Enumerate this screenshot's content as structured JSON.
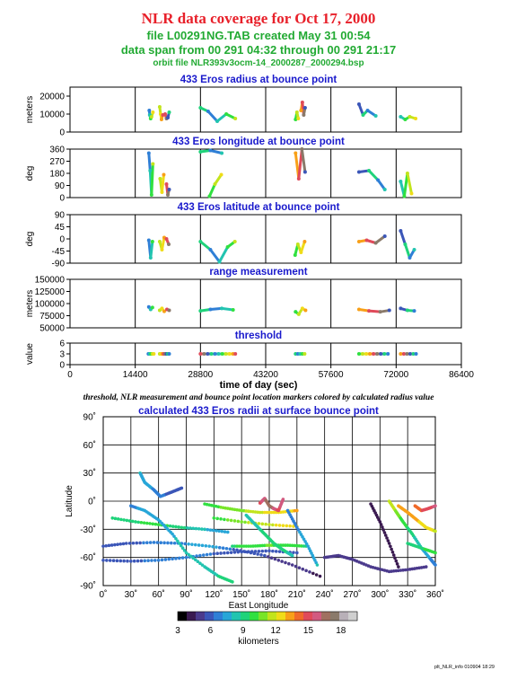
{
  "header": {
    "title": "NLR data coverage for Oct 17, 2000",
    "file_line": "file L00291NG.TAB created May 31 00:54",
    "span_line": "data span from 00 291 04:32 through 00 291 21:17",
    "orbit_line": "orbit file NLR393v3ocm-14_2000287_2000294.bsp"
  },
  "caption": "threshold, NLR measurement and bounce point location markers colored by calculated radius value",
  "footer": "plt_NLR_info 010904 18:29",
  "colors": {
    "header_title": "#e8202a",
    "header_info": "#22aa33",
    "panel_title": "#1a1acc"
  },
  "chart_data": [
    {
      "type": "scatter",
      "title": "433 Eros radius at bounce point",
      "ylabel": "meters",
      "ylim": [
        0,
        25000
      ],
      "yticks": [
        "20000",
        "10000",
        "0"
      ],
      "ytick_values": [
        20000,
        10000,
        0
      ],
      "xlim": [
        0,
        86400
      ],
      "series": [
        {
          "x": [
            17500,
            17600,
            17800,
            18000,
            18300
          ],
          "y": [
            12000,
            9500,
            7500,
            8500,
            11000
          ]
        },
        {
          "x": [
            19800,
            20000,
            20200,
            20500
          ],
          "y": [
            14000,
            10000,
            7000,
            9500
          ]
        },
        {
          "x": [
            21000,
            21300,
            21600,
            21900
          ],
          "y": [
            10000,
            7500,
            8000,
            11000
          ]
        },
        {
          "x": [
            28800,
            30500,
            32500,
            34500,
            36500
          ],
          "y": [
            13500,
            11500,
            6000,
            10000,
            7500
          ]
        },
        {
          "x": [
            49800,
            50100,
            50400
          ],
          "y": [
            7000,
            11000,
            7500
          ]
        },
        {
          "x": [
            51000,
            51300,
            51600,
            51900
          ],
          "y": [
            12000,
            16500,
            9500,
            13500
          ]
        },
        {
          "x": [
            63800,
            64700,
            65700,
            67500
          ],
          "y": [
            15500,
            9500,
            12000,
            9000
          ]
        },
        {
          "x": [
            73000,
            74000,
            75000,
            76300
          ],
          "y": [
            8500,
            7000,
            8500,
            7500
          ]
        }
      ]
    },
    {
      "type": "scatter",
      "title": "433 Eros longitude at bounce point",
      "ylabel": "deg",
      "ylim": [
        0,
        360
      ],
      "yticks": [
        "360",
        "270",
        "180",
        "90",
        "0"
      ],
      "ytick_values": [
        360,
        270,
        180,
        90,
        0
      ],
      "xlim": [
        0,
        86400
      ],
      "series": [
        {
          "x": [
            17400,
            17700,
            18000,
            18300
          ],
          "y": [
            330,
            200,
            20,
            250
          ]
        },
        {
          "x": [
            19900,
            20300,
            20700
          ],
          "y": [
            140,
            40,
            170
          ]
        },
        {
          "x": [
            21300,
            21600,
            21900
          ],
          "y": [
            100,
            20,
            60
          ]
        },
        {
          "x": [
            28800,
            31000,
            33500
          ],
          "y": [
            340,
            350,
            330
          ]
        },
        {
          "x": [
            30800,
            32000,
            33400
          ],
          "y": [
            10,
            100,
            170
          ]
        },
        {
          "x": [
            49800,
            50500,
            51200,
            51900
          ],
          "y": [
            330,
            140,
            360,
            190
          ]
        },
        {
          "x": [
            63800,
            66000,
            68000,
            69500
          ],
          "y": [
            190,
            200,
            130,
            60
          ]
        },
        {
          "x": [
            73000,
            73800,
            74500,
            75400
          ],
          "y": [
            120,
            10,
            180,
            30
          ]
        }
      ]
    },
    {
      "type": "scatter",
      "title": "433 Eros latitude at bounce point",
      "ylabel": "deg",
      "ylim": [
        -90,
        90
      ],
      "yticks": [
        "90",
        "45",
        "0",
        "-45",
        "-90"
      ],
      "ytick_values": [
        90,
        45,
        0,
        -45,
        -90
      ],
      "xlim": [
        0,
        86400
      ],
      "series": [
        {
          "x": [
            17400,
            17800,
            18200
          ],
          "y": [
            -5,
            -70,
            -10
          ]
        },
        {
          "x": [
            19800,
            20300,
            20800
          ],
          "y": [
            -10,
            -40,
            5
          ]
        },
        {
          "x": [
            21300,
            21800
          ],
          "y": [
            0,
            -20
          ]
        },
        {
          "x": [
            28800,
            31000,
            33000,
            34800,
            36400
          ],
          "y": [
            -10,
            -40,
            -85,
            -30,
            -10
          ]
        },
        {
          "x": [
            49700,
            50300,
            51000,
            51800
          ],
          "y": [
            -60,
            -20,
            -50,
            -10
          ]
        },
        {
          "x": [
            63800,
            65500,
            67500,
            69500
          ],
          "y": [
            -10,
            -5,
            -15,
            10
          ]
        },
        {
          "x": [
            73000,
            74000,
            75000,
            76000
          ],
          "y": [
            30,
            -20,
            -70,
            -40
          ]
        }
      ]
    },
    {
      "type": "scatter",
      "title": "range measurement",
      "ylabel": "meters",
      "ylim": [
        50000,
        150000
      ],
      "yticks": [
        "150000",
        "125000",
        "100000",
        "75000",
        "50000"
      ],
      "ytick_values": [
        150000,
        125000,
        100000,
        75000,
        50000
      ],
      "xlim": [
        0,
        86400
      ],
      "series": [
        {
          "x": [
            17400,
            17800,
            18200
          ],
          "y": [
            93000,
            88000,
            92000
          ]
        },
        {
          "x": [
            19800,
            20300,
            20800
          ],
          "y": [
            86000,
            90000,
            84000
          ]
        },
        {
          "x": [
            21400,
            21900
          ],
          "y": [
            88000,
            86000
          ]
        },
        {
          "x": [
            28800,
            31000,
            33500,
            36000
          ],
          "y": [
            85000,
            88000,
            90000,
            87000
          ]
        },
        {
          "x": [
            49800,
            50500,
            51300,
            52000
          ],
          "y": [
            83000,
            78000,
            90000,
            86000
          ]
        },
        {
          "x": [
            63800,
            66000,
            68500,
            70500
          ],
          "y": [
            88000,
            85000,
            83000,
            86000
          ]
        },
        {
          "x": [
            73000,
            74500,
            76000
          ],
          "y": [
            90000,
            86000,
            85000
          ]
        }
      ]
    },
    {
      "type": "scatter",
      "title": "threshold",
      "ylabel": "value",
      "ylim": [
        0,
        6
      ],
      "yticks": [
        "6",
        "3",
        "0"
      ],
      "ytick_values": [
        6,
        3,
        0
      ],
      "xlabel": "time of day (sec)",
      "xlim": [
        0,
        86400
      ],
      "xticks": [
        "0",
        "14400",
        "28800",
        "43200",
        "57600",
        "72000",
        "86400"
      ],
      "xtick_values": [
        0,
        14400,
        28800,
        43200,
        57600,
        72000,
        86400
      ],
      "series": [
        {
          "x": [
            17300,
            17600,
            17900,
            18200,
            18500
          ],
          "y": [
            3,
            3,
            3,
            3,
            3
          ]
        },
        {
          "x": [
            19800,
            20100,
            20400,
            20700,
            21000,
            21300,
            21600,
            21900
          ],
          "y": [
            3,
            3,
            3,
            3,
            3,
            3,
            3,
            3
          ]
        },
        {
          "x": [
            28800,
            29600,
            30400,
            31200,
            32000,
            32800,
            33600,
            34400,
            35200,
            36000,
            36500
          ],
          "y": [
            3,
            3,
            3,
            3,
            3,
            3,
            3,
            3,
            3,
            3,
            3
          ]
        },
        {
          "x": [
            49800,
            50300,
            50800,
            51300,
            51800
          ],
          "y": [
            3,
            3,
            3,
            3,
            3
          ]
        },
        {
          "x": [
            63800,
            64600,
            65400,
            66200,
            67000,
            67800,
            68600,
            69400,
            70200
          ],
          "y": [
            3,
            3,
            3,
            3,
            3,
            3,
            3,
            3,
            3
          ]
        },
        {
          "x": [
            73000,
            73700,
            74400,
            75100,
            75800,
            76400
          ],
          "y": [
            3,
            3,
            3,
            3,
            3,
            3
          ]
        }
      ]
    },
    {
      "type": "scatter",
      "title": "calculated 433 Eros radii at surface bounce point",
      "xlabel": "East Longitude",
      "ylabel": "Latitude",
      "xlim": [
        0,
        360
      ],
      "ylim": [
        -90,
        90
      ],
      "xticks": [
        "0˚",
        "30˚",
        "60˚",
        "90˚",
        "120˚",
        "150˚",
        "180˚",
        "210˚",
        "240˚",
        "270˚",
        "300˚",
        "330˚",
        "360˚"
      ],
      "xtick_values": [
        0,
        30,
        60,
        90,
        120,
        150,
        180,
        210,
        240,
        270,
        300,
        330,
        360
      ],
      "yticks": [
        "90˚",
        "60˚",
        "30˚",
        "0˚",
        "-30˚",
        "-60˚",
        "-90˚"
      ],
      "ytick_values": [
        90,
        60,
        30,
        0,
        -30,
        -60,
        -90
      ],
      "colorbar": {
        "label": "kilometers",
        "ticks": [
          "3",
          "6",
          "9",
          "12",
          "15",
          "18"
        ],
        "tick_values": [
          3,
          6,
          9,
          12,
          15,
          18
        ],
        "range": [
          3,
          19.5
        ],
        "colors": [
          "#000000",
          "#3a1a50",
          "#4b3a8c",
          "#3b56b8",
          "#2f7fd6",
          "#27a6d8",
          "#22c4b0",
          "#1fd37a",
          "#30e040",
          "#78e528",
          "#c2e41c",
          "#f0dc18",
          "#f8a018",
          "#f06a2a",
          "#e04a5a",
          "#d25a80",
          "#a07060",
          "#8a7a6a",
          "#b8b0b8",
          "#cfcfcf"
        ]
      },
      "series": [
        {
          "x": [
            0,
            25,
            55,
            85,
            115,
            145,
            175,
            205,
            235
          ],
          "y": [
            -48,
            -45,
            -44,
            -45,
            -48,
            -52,
            -58,
            -68,
            -80
          ],
          "v": [
            5.5,
            6,
            6.5,
            7,
            7.5,
            6,
            5.5,
            5,
            4.5
          ]
        },
        {
          "x": [
            0,
            30,
            60,
            90,
            120,
            150,
            180,
            210
          ],
          "y": [
            -63,
            -64,
            -63,
            -60,
            -56,
            -54,
            -53,
            -55
          ],
          "v": [
            6,
            6.2,
            6.4,
            6.6,
            6.3,
            6,
            5.8,
            5.6
          ]
        },
        {
          "x": [
            10,
            35,
            60,
            85,
            110,
            135
          ],
          "y": [
            -18,
            -22,
            -25,
            -28,
            -30,
            -33
          ],
          "v": [
            9,
            9.5,
            10,
            9,
            8,
            7.5
          ]
        },
        {
          "x": [
            30,
            45,
            60,
            75,
            90,
            110,
            125,
            140
          ],
          "y": [
            -5,
            -10,
            -20,
            -35,
            -55,
            -70,
            -80,
            -86
          ],
          "v": [
            7,
            7.3,
            7.6,
            7.9,
            8.2,
            8.5,
            8.8,
            9
          ]
        },
        {
          "x": [
            110,
            130,
            150,
            170,
            190,
            210
          ],
          "y": [
            -3,
            -7,
            -10,
            -12,
            -12,
            -10
          ],
          "v": [
            10,
            10.5,
            11,
            12,
            12.5,
            13
          ]
        },
        {
          "x": [
            120,
            150,
            180,
            210
          ],
          "y": [
            -18,
            -22,
            -25,
            -27
          ],
          "v": [
            10,
            11,
            12,
            12.5
          ]
        },
        {
          "x": [
            140,
            160,
            180,
            200,
            220
          ],
          "y": [
            -48,
            -48,
            -47,
            -47,
            -48
          ],
          "v": [
            9.5,
            10,
            10.5,
            10,
            9.5
          ]
        },
        {
          "x": [
            155,
            165,
            175,
            185,
            195,
            205
          ],
          "y": [
            -15,
            -25,
            -35,
            -45,
            -52,
            -58
          ],
          "v": [
            8,
            8.5,
            9,
            9.5,
            9,
            8.5
          ]
        },
        {
          "x": [
            170,
            175,
            180,
            185,
            190,
            195
          ],
          "y": [
            -2,
            3,
            -5,
            -8,
            -10,
            2
          ],
          "v": [
            15,
            16,
            17,
            16,
            15,
            16
          ]
        },
        {
          "x": [
            200,
            210,
            222,
            232
          ],
          "y": [
            -10,
            -28,
            -48,
            -68
          ],
          "v": [
            6.5,
            7,
            7.5,
            8
          ]
        },
        {
          "x": [
            240,
            255,
            270,
            290,
            310,
            330,
            350
          ],
          "y": [
            -60,
            -58,
            -62,
            -70,
            -75,
            -73,
            -70
          ],
          "v": [
            5,
            5.2,
            5.4,
            5.2,
            5,
            5.2,
            5.4
          ]
        },
        {
          "x": [
            290,
            300,
            310,
            320
          ],
          "y": [
            -3,
            -22,
            -45,
            -70
          ],
          "v": [
            4,
            4.2,
            4.4,
            4.6
          ]
        },
        {
          "x": [
            310,
            318,
            325,
            335,
            345,
            355,
            360
          ],
          "y": [
            0,
            -12,
            -22,
            -35,
            -50,
            -62,
            -68
          ],
          "v": [
            12,
            11,
            10,
            9,
            8,
            7,
            6.5
          ]
        },
        {
          "x": [
            320,
            330,
            340,
            350,
            360
          ],
          "y": [
            -5,
            -12,
            -20,
            -28,
            -32
          ],
          "v": [
            13,
            13.5,
            13,
            12.5,
            12
          ]
        },
        {
          "x": [
            330,
            345,
            360
          ],
          "y": [
            -45,
            -50,
            -55
          ],
          "v": [
            9,
            9.5,
            10
          ]
        },
        {
          "x": [
            338,
            345,
            352,
            360
          ],
          "y": [
            -5,
            -10,
            -8,
            -5
          ],
          "v": [
            14,
            14.5,
            15,
            15.5
          ]
        },
        {
          "x": [
            40,
            45,
            55,
            62,
            75,
            85
          ],
          "y": [
            30,
            20,
            12,
            5,
            10,
            14
          ],
          "v": [
            8,
            7.5,
            7,
            6.5,
            6,
            5.5
          ]
        }
      ]
    }
  ]
}
